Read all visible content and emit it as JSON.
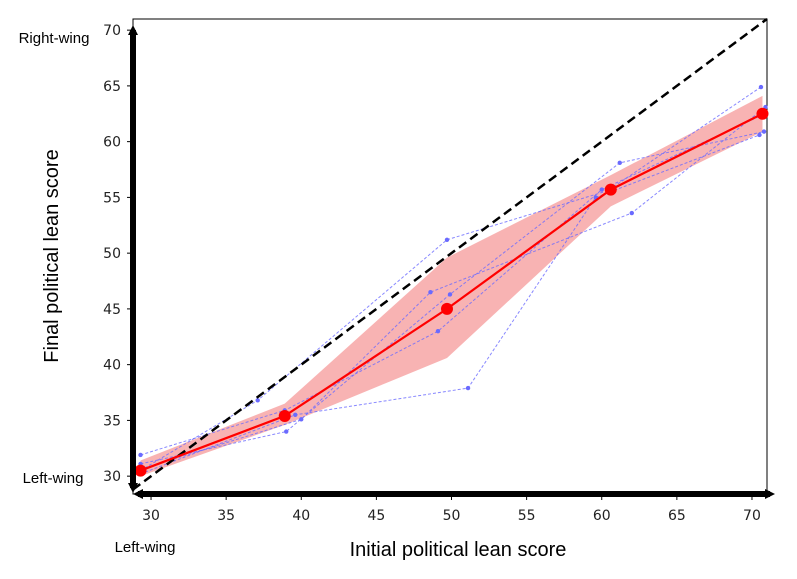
{
  "chart_data": {
    "type": "line",
    "xlabel": "Initial political lean score",
    "ylabel": "Final political lean score",
    "xlim": [
      28.8,
      71
    ],
    "ylim": [
      28.4,
      71
    ],
    "xticks": [
      30,
      35,
      40,
      45,
      50,
      55,
      60,
      65,
      70
    ],
    "yticks": [
      30,
      35,
      40,
      45,
      50,
      55,
      60,
      65,
      70
    ],
    "axis_end_labels": {
      "y_top": "Right-wing",
      "y_bottom": "Left-wing",
      "x_left": "Left-wing"
    },
    "identity_line": {
      "x": [
        28.8,
        71
      ],
      "y": [
        28.8,
        71
      ],
      "color": "#000000",
      "style": "dashed"
    },
    "mean_series": {
      "color": "#ff0000",
      "x": [
        29.3,
        38.9,
        49.7,
        60.6,
        70.7
      ],
      "y": [
        30.5,
        35.4,
        45.0,
        55.7,
        62.5
      ]
    },
    "band": {
      "color": "#f48080",
      "x": [
        29.3,
        38.9,
        49.7,
        60.6,
        70.7
      ],
      "upper": [
        31.4,
        36.5,
        49.6,
        57.0,
        64.1
      ],
      "lower": [
        30.0,
        34.6,
        40.6,
        54.2,
        60.9
      ]
    },
    "individual_runs": {
      "color": "#6a6aff",
      "style": "dashed",
      "runs": [
        {
          "x": [
            29.3,
            37.1,
            49.7,
            60.4,
            70.6
          ],
          "y": [
            30.5,
            36.8,
            51.2,
            55.6,
            64.9
          ]
        },
        {
          "x": [
            29.3,
            39.0,
            49.9,
            61.2,
            70.8
          ],
          "y": [
            31.1,
            34.0,
            46.3,
            58.1,
            60.9
          ]
        },
        {
          "x": [
            29.3,
            39.6,
            51.1,
            59.6,
            70.5
          ],
          "y": [
            30.2,
            35.5,
            37.9,
            55.0,
            60.6
          ]
        },
        {
          "x": [
            29.3,
            40.0,
            48.6,
            62.0,
            70.9
          ],
          "y": [
            30.6,
            35.1,
            46.5,
            53.6,
            63.1
          ]
        },
        {
          "x": [
            29.3,
            38.9,
            49.1,
            60.0,
            70.7
          ],
          "y": [
            31.9,
            35.9,
            43.0,
            55.7,
            62.4
          ]
        }
      ]
    }
  }
}
